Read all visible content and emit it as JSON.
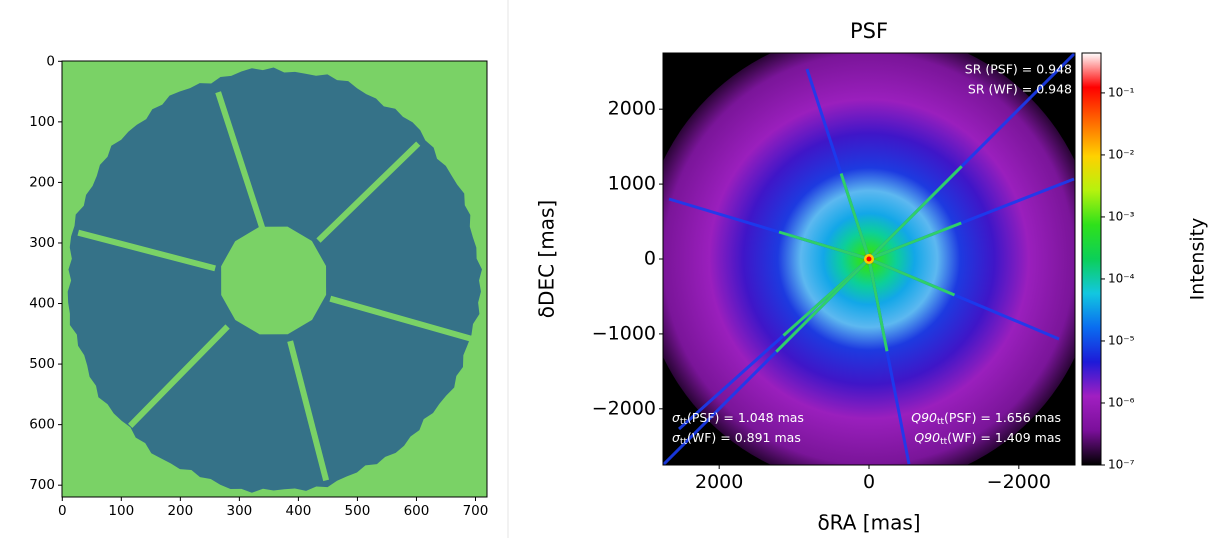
{
  "chart_data": [
    {
      "type": "image",
      "xlim": [
        -0.5,
        719.5
      ],
      "ylim": [
        719.5,
        -0.5
      ],
      "xticks": [
        0,
        100,
        200,
        300,
        400,
        500,
        600,
        700
      ],
      "yticks": [
        0,
        100,
        200,
        300,
        400,
        500,
        600,
        700
      ]
    },
    {
      "type": "image",
      "title": "PSF",
      "xlabel": "δRA [mas]",
      "ylabel": "δDEC [mas]",
      "xlim": [
        2750,
        -2750
      ],
      "ylim": [
        -2750,
        2750
      ],
      "xticks": [
        2000,
        0,
        {
          "value": -2000,
          "label": "−2000"
        }
      ],
      "yticks": [
        {
          "value": -2000,
          "label": "−2000"
        },
        {
          "value": -1000,
          "label": "−1000"
        },
        0,
        1000,
        2000
      ],
      "annotations": {
        "sr": [
          "SR (PSF) = 0.948",
          "SR (WF) = 0.948"
        ],
        "sigma": [
          {
            "sym": "σ",
            "sub": "tt",
            "rest": "(PSF) = 1.048 mas"
          },
          {
            "sym": "σ",
            "sub": "tt",
            "rest": "(WF) = 0.891 mas"
          }
        ],
        "q90": [
          {
            "sym": "Q90",
            "sub": "tt",
            "rest": "(PSF) = 1.656 mas"
          },
          {
            "sym": "Q90",
            "sub": "tt",
            "rest": "(WF) = 1.409 mas"
          }
        ]
      },
      "colorbar": {
        "label": "Intensity",
        "log": true,
        "clim": [
          1e-07,
          0.44
        ],
        "colormap": [
          "#000000",
          "#7a0f9a",
          "#a11fc1",
          "#1d1ad8",
          "#0a6cf0",
          "#12c7e0",
          "#0ccf58",
          "#2fe11b",
          "#b6f20e",
          "#ffd100",
          "#ff6a00",
          "#ff0000",
          "#ffffff"
        ],
        "ticks": [
          {
            "value": 1e-07,
            "label": "10⁻⁷"
          },
          {
            "value": 1e-06,
            "label": "10⁻⁶"
          },
          {
            "value": 1e-05,
            "label": "10⁻⁵"
          },
          {
            "value": 0.0001,
            "label": "10⁻⁴"
          },
          {
            "value": 0.001,
            "label": "10⁻³"
          },
          {
            "value": 0.01,
            "label": "10⁻²"
          },
          {
            "value": 0.1,
            "label": "10⁻¹"
          }
        ]
      }
    }
  ]
}
